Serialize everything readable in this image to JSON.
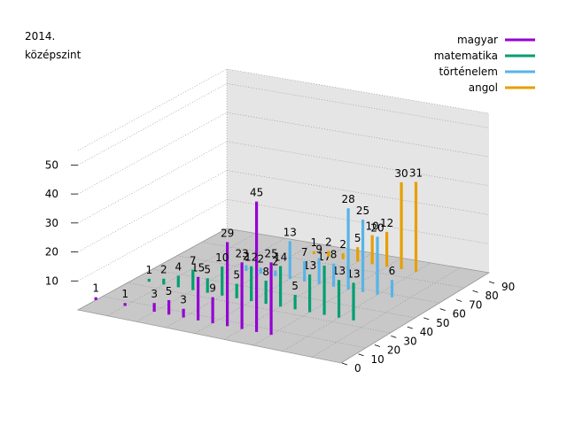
{
  "chart_data": {
    "type": "bar",
    "title_lines": [
      "2014.",
      "középszint"
    ],
    "zlim": [
      0,
      55
    ],
    "z_ticks": [
      10,
      20,
      30,
      40,
      50
    ],
    "x_ticks": [
      0,
      10,
      20,
      30,
      40,
      50,
      60,
      70,
      80,
      90
    ],
    "grid": true,
    "legend_position": "top-right",
    "series": [
      {
        "name": "magyar",
        "color": "#9400d3",
        "points": [
          {
            "x": 0,
            "value": 1
          },
          {
            "x": 10,
            "value": 1
          },
          {
            "x": 20,
            "value": 3
          },
          {
            "x": 25,
            "value": 5
          },
          {
            "x": 30,
            "value": 3
          },
          {
            "x": 35,
            "value": 15
          },
          {
            "x": 40,
            "value": 9
          },
          {
            "x": 45,
            "value": 29
          },
          {
            "x": 50,
            "value": 23
          },
          {
            "x": 55,
            "value": 45
          },
          {
            "x": 60,
            "value": 25
          }
        ]
      },
      {
        "name": "matematika",
        "color": "#009e73",
        "points": [
          {
            "x": 5,
            "value": 1
          },
          {
            "x": 10,
            "value": 2
          },
          {
            "x": 15,
            "value": 4
          },
          {
            "x": 20,
            "value": 7
          },
          {
            "x": 25,
            "value": 5
          },
          {
            "x": 30,
            "value": 10
          },
          {
            "x": 35,
            "value": 5
          },
          {
            "x": 40,
            "value": 12
          },
          {
            "x": 45,
            "value": 8
          },
          {
            "x": 50,
            "value": 14
          },
          {
            "x": 55,
            "value": 5
          },
          {
            "x": 60,
            "value": 13
          },
          {
            "x": 65,
            "value": 17
          },
          {
            "x": 70,
            "value": 13
          },
          {
            "x": 75,
            "value": 13
          }
        ]
      },
      {
        "name": "történelem",
        "color": "#56b4e9",
        "points": [
          {
            "x": 25,
            "value": 2
          },
          {
            "x": 30,
            "value": 2
          },
          {
            "x": 35,
            "value": 2
          },
          {
            "x": 40,
            "value": 13
          },
          {
            "x": 45,
            "value": 7
          },
          {
            "x": 50,
            "value": 9
          },
          {
            "x": 55,
            "value": 8
          },
          {
            "x": 60,
            "value": 28
          },
          {
            "x": 65,
            "value": 25
          },
          {
            "x": 70,
            "value": 20
          },
          {
            "x": 75,
            "value": 6
          }
        ]
      },
      {
        "name": "angol",
        "color": "#e69f00",
        "points": [
          {
            "x": 35,
            "value": 1
          },
          {
            "x": 40,
            "value": 2
          },
          {
            "x": 45,
            "value": 2
          },
          {
            "x": 50,
            "value": 5
          },
          {
            "x": 55,
            "value": 10
          },
          {
            "x": 60,
            "value": 12
          },
          {
            "x": 65,
            "value": 30
          },
          {
            "x": 70,
            "value": 31
          }
        ]
      }
    ]
  }
}
